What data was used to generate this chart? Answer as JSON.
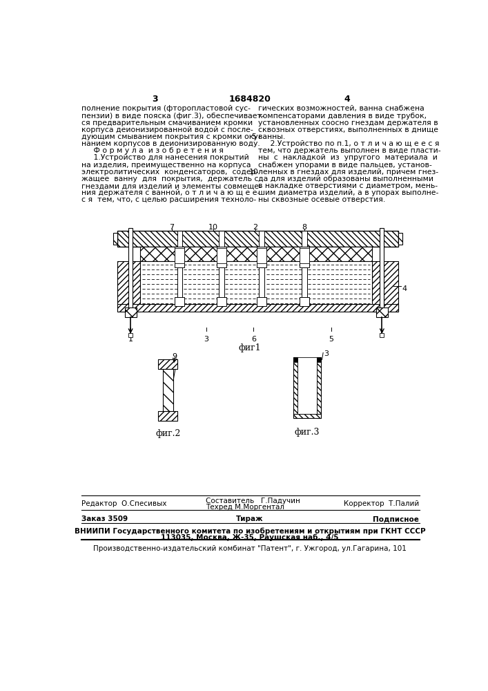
{
  "page_number_left": "3",
  "page_number_center": "1684820",
  "page_number_right": "4",
  "col_left_text": [
    "полнение покрытия (фторопластовой сус-",
    "пензии) в виде пояска (фиг.3), обеспечивает-",
    "ся предварительным смачиванием кромки",
    "корпуса деионизированной водой с после-",
    "дующим смыванием покрытия с кромки оку-",
    "нанием корпусов в деионизированную воду.",
    "     Ф о р м у л а  и з о б р е т е н и я",
    "     1.Устройство для нанесения покрытий",
    "на изделия, преимущественно на корпуса",
    "электролитических  конденсаторов,  содер-",
    "жащее  ванну  для  покрытия,  держатель с",
    "гнездами для изделий и элементы совмеще-",
    "ния держателя с ванной, о т л и ч а ю щ е е-",
    "с я  тем, что, с целью расширения техноло-"
  ],
  "col_right_text": [
    "гических возможностей, ванна снабжена",
    "компенсаторами давления в виде трубок,",
    "установленных соосно гнездам держателя в",
    "сквозных отверстиях, выполненных в днище",
    "ванны.",
    "     2.Устройство по п.1, о т л и ч а ю щ е е с я",
    "тем, что держатель выполнен в виде пласти-",
    "ны  с  накладкой  из  упругого  материала  и",
    "снабжен упорами в виде пальцев, установ-",
    "ленных в гнездах для изделий, причем гнез-",
    "да для изделий образованы выполненными",
    "в накладке отверстиями с диаметром, мень-",
    "шим диаметра изделий, а в упорах выполне-",
    "ны сквозные осевые отверстия."
  ],
  "line_number_5": "5",
  "line_number_10": "10",
  "fig1_caption": "фиг1",
  "fig2_caption": "фиг.2",
  "fig3_caption": "фиг.3",
  "footer_line1_left": "Редактор  О.Спесивых",
  "footer_line1_center1": "Составитель   Г.Падучин",
  "footer_line1_center2": "Техред М.Моргентал",
  "footer_line1_right": "Корректор  Т.Палий",
  "footer_line2_left": "Заказ 3509",
  "footer_line2_center": "Тираж",
  "footer_line2_right": "Подписное",
  "footer_line3": "ВНИИПИ Государственного комитета по изобретениям и открытиям при ГКНТ СССР",
  "footer_line4": "113035, Москва, Ж-35, Раушская наб., 4/5",
  "footer_line5": "Производственно-издательский комбинат \"Патент\", г. Ужгород, ул.Гагарина, 101",
  "bg_color": "#ffffff",
  "text_color": "#000000"
}
